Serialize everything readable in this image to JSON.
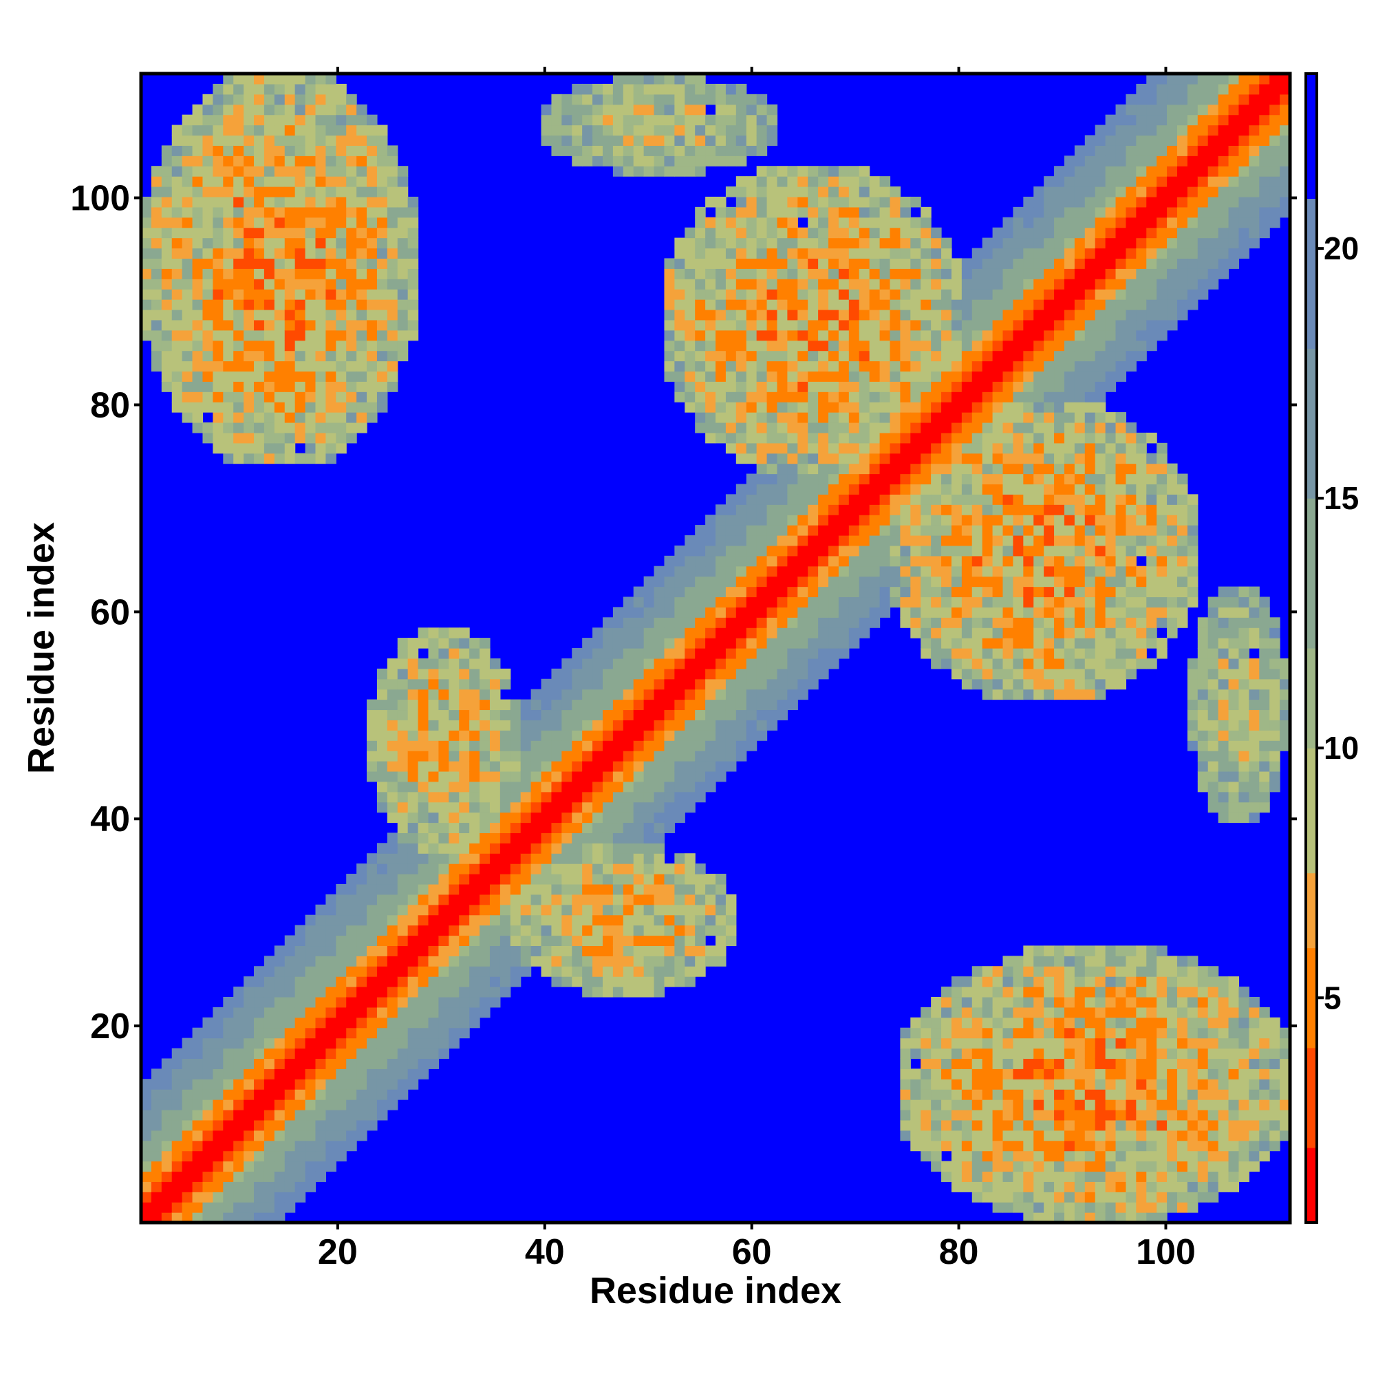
{
  "chart_data": {
    "type": "heatmap",
    "title": "",
    "xlabel": "Residue index",
    "ylabel": "Residue index",
    "xlim": [
      1,
      112
    ],
    "ylim": [
      1,
      112
    ],
    "x_ticks": [
      20,
      40,
      60,
      80,
      100
    ],
    "y_ticks": [
      20,
      40,
      60,
      80,
      100
    ],
    "colorbar": {
      "ticks": [
        5,
        10,
        15,
        20
      ],
      "range": [
        0.5,
        23.5
      ],
      "colors": [
        {
          "max": 2,
          "color": "#ff0000"
        },
        {
          "max": 4,
          "color": "#ff4a00"
        },
        {
          "max": 6,
          "color": "#ff8000"
        },
        {
          "max": 7.5,
          "color": "#f5a23a"
        },
        {
          "max": 10,
          "color": "#b8c27a"
        },
        {
          "max": 12,
          "color": "#9fb787"
        },
        {
          "max": 15,
          "color": "#8aa891"
        },
        {
          "max": 18,
          "color": "#7796a6"
        },
        {
          "max": 21,
          "color": "#6a8ab8"
        },
        {
          "max": 99,
          "color": "#0000ff"
        }
      ],
      "cutoff": 22
    },
    "matrix_description": {
      "n_residues": 112,
      "diagonal_band_width": 6,
      "off_diagonal_contact_regions": [
        {
          "x_range": [
            1,
            27
          ],
          "y_range": [
            75,
            112
          ],
          "mean_distance": 12
        },
        {
          "x_range": [
            75,
            112
          ],
          "y_range": [
            1,
            27
          ],
          "mean_distance": 12
        },
        {
          "x_range": [
            52,
            80
          ],
          "y_range": [
            74,
            103
          ],
          "mean_distance": 12
        },
        {
          "x_range": [
            74,
            103
          ],
          "y_range": [
            52,
            80
          ],
          "mean_distance": 12
        },
        {
          "x_range": [
            23,
            37
          ],
          "y_range": [
            37,
            58
          ],
          "mean_distance": 13
        },
        {
          "x_range": [
            37,
            58
          ],
          "y_range": [
            23,
            37
          ],
          "mean_distance": 13
        },
        {
          "x_range": [
            103,
            112
          ],
          "y_range": [
            40,
            62
          ],
          "mean_distance": 15
        },
        {
          "x_range": [
            40,
            62
          ],
          "y_range": [
            103,
            112
          ],
          "mean_distance": 15
        }
      ]
    }
  }
}
